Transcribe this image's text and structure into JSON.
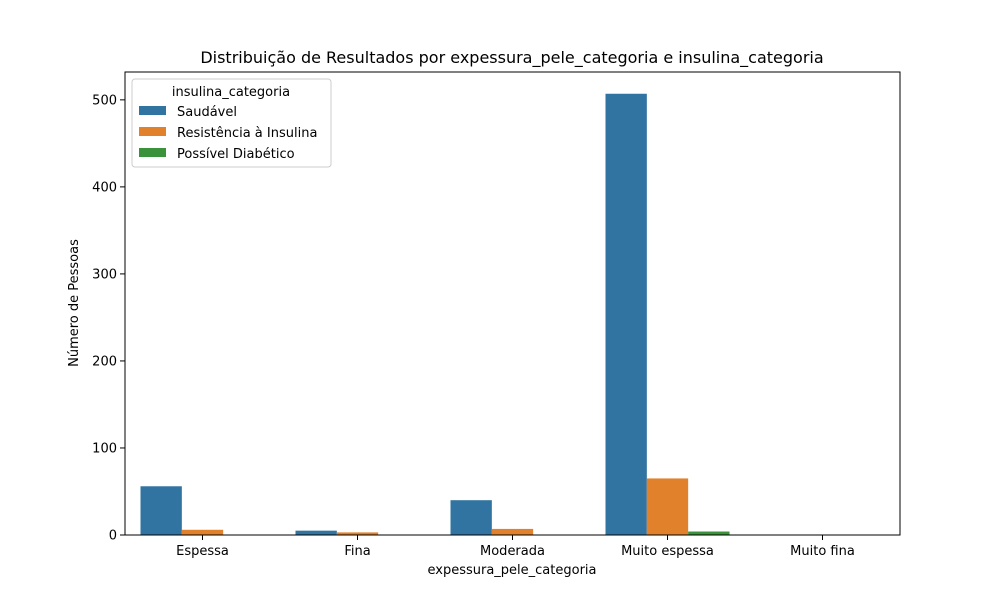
{
  "chart_data": {
    "type": "bar",
    "title": "Distribuição de Resultados por expessura_pele_categoria e insulina_categoria",
    "xlabel": "expessura_pele_categoria",
    "ylabel": "Número de Pessoas",
    "categories": [
      "Espessa",
      "Fina",
      "Moderada",
      "Muito espessa",
      "Muito fina"
    ],
    "ylim": [
      0,
      532
    ],
    "yticks": [
      0,
      100,
      200,
      300,
      400,
      500
    ],
    "grid": false,
    "legend": {
      "title": "insulina_categoria",
      "placement": "top-left"
    },
    "series": [
      {
        "name": "Saudável",
        "color": "#3274a1",
        "values": [
          56,
          5,
          40,
          507,
          0
        ]
      },
      {
        "name": "Resistência à Insulina",
        "color": "#e1812c",
        "values": [
          6,
          3,
          7,
          65,
          0
        ]
      },
      {
        "name": "Possível Diabético",
        "color": "#3a923a",
        "values": [
          0,
          0,
          0,
          4,
          0
        ]
      }
    ]
  }
}
